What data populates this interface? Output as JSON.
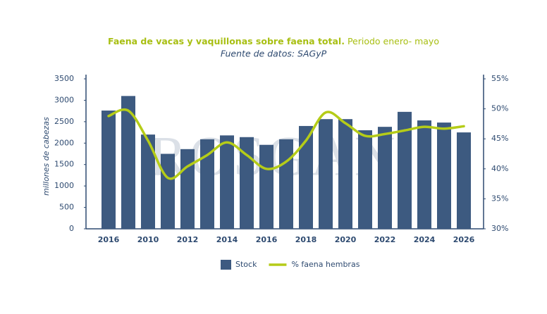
{
  "chart_data": {
    "type": "bar_line",
    "title": "Faena de vacas y vaquillonas sobre faena total.",
    "title_suffix": "Periodo enero- mayo",
    "subtitle": "Fuente de datos: SAGyP",
    "y_label": "millones de cabezas",
    "watermark": "ROSGAN",
    "categories": [
      "2016",
      null,
      "2010",
      null,
      "2012",
      null,
      "2014",
      null,
      "2016",
      null,
      "2018",
      null,
      "2020",
      null,
      "2022",
      null,
      "2024",
      null,
      "2026"
    ],
    "series": [
      {
        "name": "Stock",
        "color": "#3d5a80",
        "kind": "bar",
        "values": [
          2760,
          3100,
          2200,
          1750,
          1860,
          2090,
          2180,
          2140,
          1960,
          2090,
          2400,
          2560,
          2560,
          2300,
          2380,
          2730,
          2530,
          2480,
          2250
        ]
      },
      {
        "name": "% faena hembras",
        "color": "#b5cc18",
        "kind": "line",
        "axis": "y2",
        "values": [
          48.8,
          49.7,
          44.7,
          38.5,
          40.4,
          42.3,
          44.4,
          42.3,
          40.0,
          41.2,
          44.7,
          49.4,
          47.6,
          45.5,
          45.8,
          46.4,
          47.0,
          46.7,
          47.1
        ]
      }
    ],
    "ylim": [
      0,
      3500
    ],
    "yticks": [
      0,
      500,
      1000,
      1500,
      2000,
      2500,
      3000,
      3500
    ],
    "y2lim": [
      30,
      55
    ],
    "y2ticks": [
      {
        "value": 30,
        "label": "30%"
      },
      {
        "value": 35,
        "label": "35%"
      },
      {
        "value": 40,
        "label": "40%"
      },
      {
        "value": 45,
        "label": "45%"
      },
      {
        "value": 50,
        "label": "50%"
      },
      {
        "value": 55,
        "label": "55%"
      }
    ],
    "legend": "bottom"
  }
}
